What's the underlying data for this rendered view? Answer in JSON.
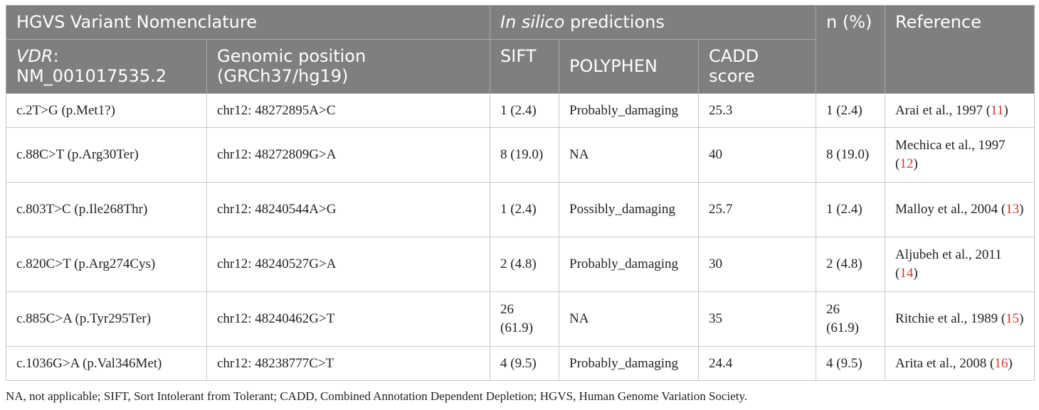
{
  "header": {
    "group_nomenclature": "HGVS Variant Nomenclature",
    "group_predictions_italic": "In silico",
    "group_predictions_rest": " predictions",
    "n_pct": "n (%)",
    "reference": "Reference",
    "vdr_italic": "VDR",
    "vdr_rest": ":",
    "vdr_line2": "NM_001017535.2",
    "genomic_line1": "Genomic position",
    "genomic_line2": "(GRCh37/hg19)",
    "sift": "SIFT",
    "polyphen": "POLYPHEN",
    "cadd_line1": "CADD",
    "cadd_line2": "score"
  },
  "rows": [
    {
      "variant": "c.2T>G (p.Met1?)",
      "position": "chr12: 48272895A>C",
      "sift": "1 (2.4)",
      "polyphen": "Probably_damaging",
      "cadd": "25.3",
      "n": "1 (2.4)",
      "ref_text": "Arai et al., 1997 (",
      "ref_num": "11",
      "ref_close": ")"
    },
    {
      "variant": "c.88C>T (p.Arg30Ter)",
      "position": "chr12: 48272809G>A",
      "sift": "8 (19.0)",
      "polyphen": "NA",
      "cadd": "40",
      "n": "8 (19.0)",
      "ref_text": "Mechica et al., 1997 (",
      "ref_num": "12",
      "ref_close": ")"
    },
    {
      "variant": "c.803T>C (p.Ile268Thr)",
      "position": "chr12: 48240544A>G",
      "sift": "1 (2.4)",
      "polyphen": "Possibly_damaging",
      "cadd": "25.7",
      "n": "1 (2.4)",
      "ref_text": "Malloy et al., 2004 (",
      "ref_num": "13",
      "ref_close": ")"
    },
    {
      "variant": "c.820C>T (p.Arg274Cys)",
      "position": "chr12: 48240527G>A",
      "sift": "2 (4.8)",
      "polyphen": "Probably_damaging",
      "cadd": "30",
      "n": "2 (4.8)",
      "ref_text": "Aljubeh et al., 2011 (",
      "ref_num": "14",
      "ref_close": ")"
    },
    {
      "variant": "c.885C>A (p.Tyr295Ter)",
      "position": "chr12: 48240462G>T",
      "sift": "26 (61.9)",
      "polyphen": "NA",
      "cadd": "35",
      "n": "26 (61.9)",
      "ref_text": "Ritchie et al., 1989 (",
      "ref_num": "15",
      "ref_close": ")"
    },
    {
      "variant": "c.1036G>A (p.Val346Met)",
      "position": "chr12: 48238777C>T",
      "sift": "4 (9.5)",
      "polyphen": "Probably_damaging",
      "cadd": "24.4",
      "n": "4 (9.5)",
      "ref_text": "Arita et al., 2008 (",
      "ref_num": "16",
      "ref_close": ")"
    }
  ],
  "footnote": "NA, not applicable; SIFT, Sort Intolerant from Tolerant; CADD, Combined Annotation Dependent Depletion; HGVS, Human Genome Variation Society."
}
